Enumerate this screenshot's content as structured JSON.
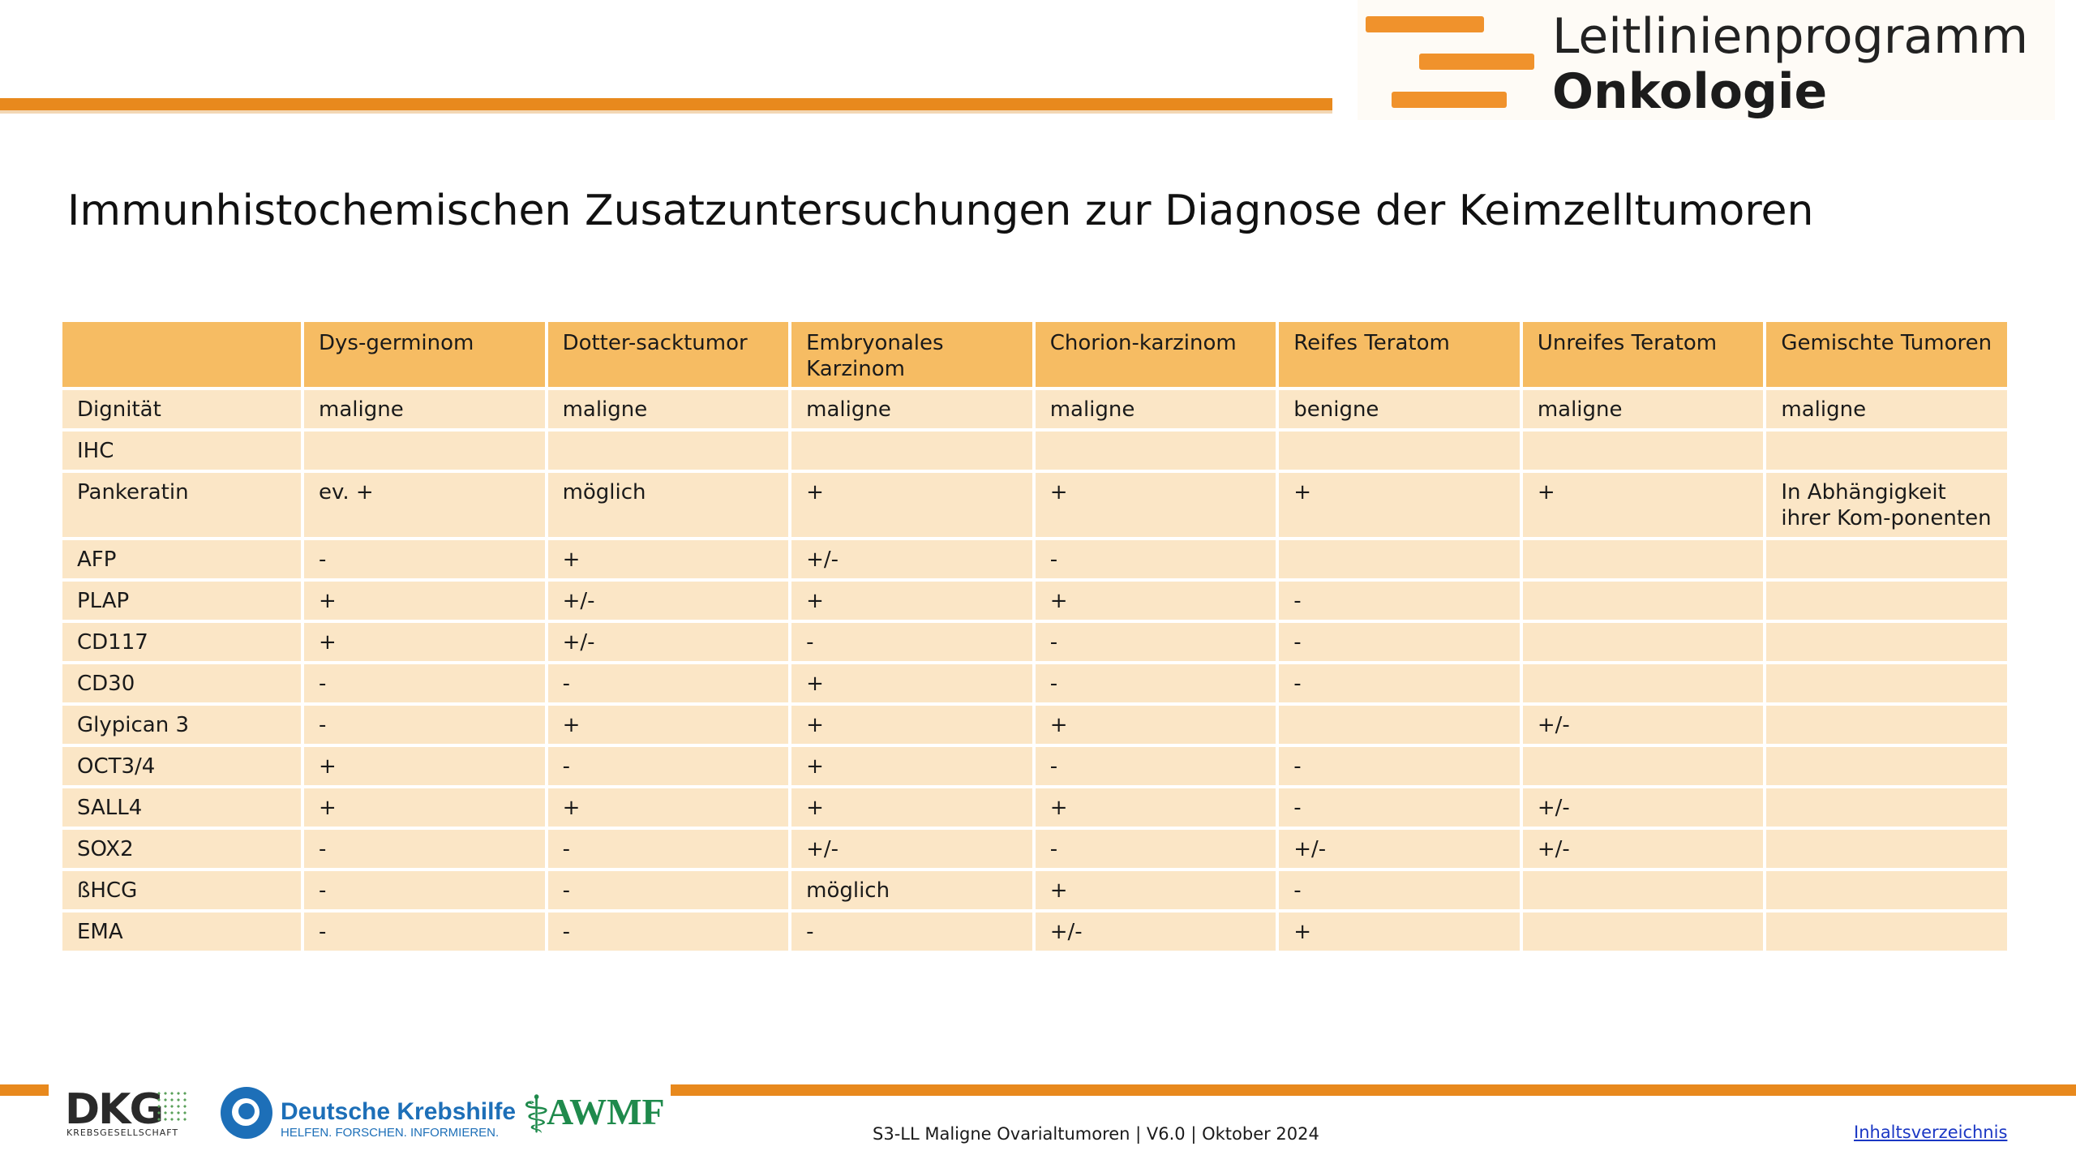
{
  "header": {
    "logo_line1": "Leitlinienprogramm",
    "logo_line2": "Onkologie"
  },
  "title": "Immunhistochemischen Zusatzuntersuchungen zur Diagnose der Keimzelltumoren",
  "table": {
    "columns": [
      "",
      "Dys-germinom",
      "Dotter-sacktumor",
      "Embryonales Karzinom",
      "Chorion-karzinom",
      "Reifes Teratom",
      "Unreifes Teratom",
      "Gemischte Tumoren"
    ],
    "rows": [
      [
        "Dignität",
        "maligne",
        "maligne",
        "maligne",
        "maligne",
        "benigne",
        "maligne",
        "maligne"
      ],
      [
        "IHC",
        "",
        "",
        "",
        "",
        "",
        "",
        ""
      ],
      [
        "Pankeratin",
        "ev. +",
        "möglich",
        "+",
        "+",
        "+",
        "+",
        "In Abhängigkeit ihrer Kom-ponenten"
      ],
      [
        "AFP",
        "-",
        "+",
        "+/-",
        "-",
        "",
        "",
        ""
      ],
      [
        "PLAP",
        "+",
        "+/-",
        "+",
        "+",
        "-",
        "",
        ""
      ],
      [
        "CD117",
        "+",
        "+/-",
        "-",
        "-",
        "-",
        "",
        ""
      ],
      [
        "CD30",
        "-",
        "-",
        "+",
        "-",
        "-",
        "",
        ""
      ],
      [
        "Glypican 3",
        "-",
        "+",
        "+",
        "+",
        "",
        "+/-",
        ""
      ],
      [
        "OCT3/4",
        "+",
        "-",
        "+",
        "-",
        "-",
        "",
        ""
      ],
      [
        "SALL4",
        "+",
        "+",
        "+",
        "+",
        "-",
        "+/-",
        ""
      ],
      [
        "SOX2",
        "-",
        "-",
        "+/-",
        "-",
        "+/-",
        "+/-",
        ""
      ],
      [
        "ßHCG",
        "-",
        "-",
        "möglich",
        "+",
        "-",
        "",
        ""
      ],
      [
        "EMA",
        "-",
        "-",
        "-",
        "+/-",
        "+",
        "",
        ""
      ]
    ]
  },
  "footer": {
    "dkg_name": "DKG",
    "dkg_sub": "KREBSGESELLSCHAFT",
    "krebshilfe_name": "Deutsche Krebshilfe",
    "krebshilfe_sub": "HELFEN. FORSCHEN. INFORMIEREN.",
    "awmf_name": "AWMF",
    "citation": "S3-LL Maligne Ovarialtumoren | V6.0 | Oktober 2024",
    "toc_link": "Inhaltsverzeichnis"
  },
  "colors": {
    "accent": "#e8891d",
    "header_cell": "#f6bc63",
    "body_cell": "#fbe6c6",
    "link": "#1a37c4"
  }
}
